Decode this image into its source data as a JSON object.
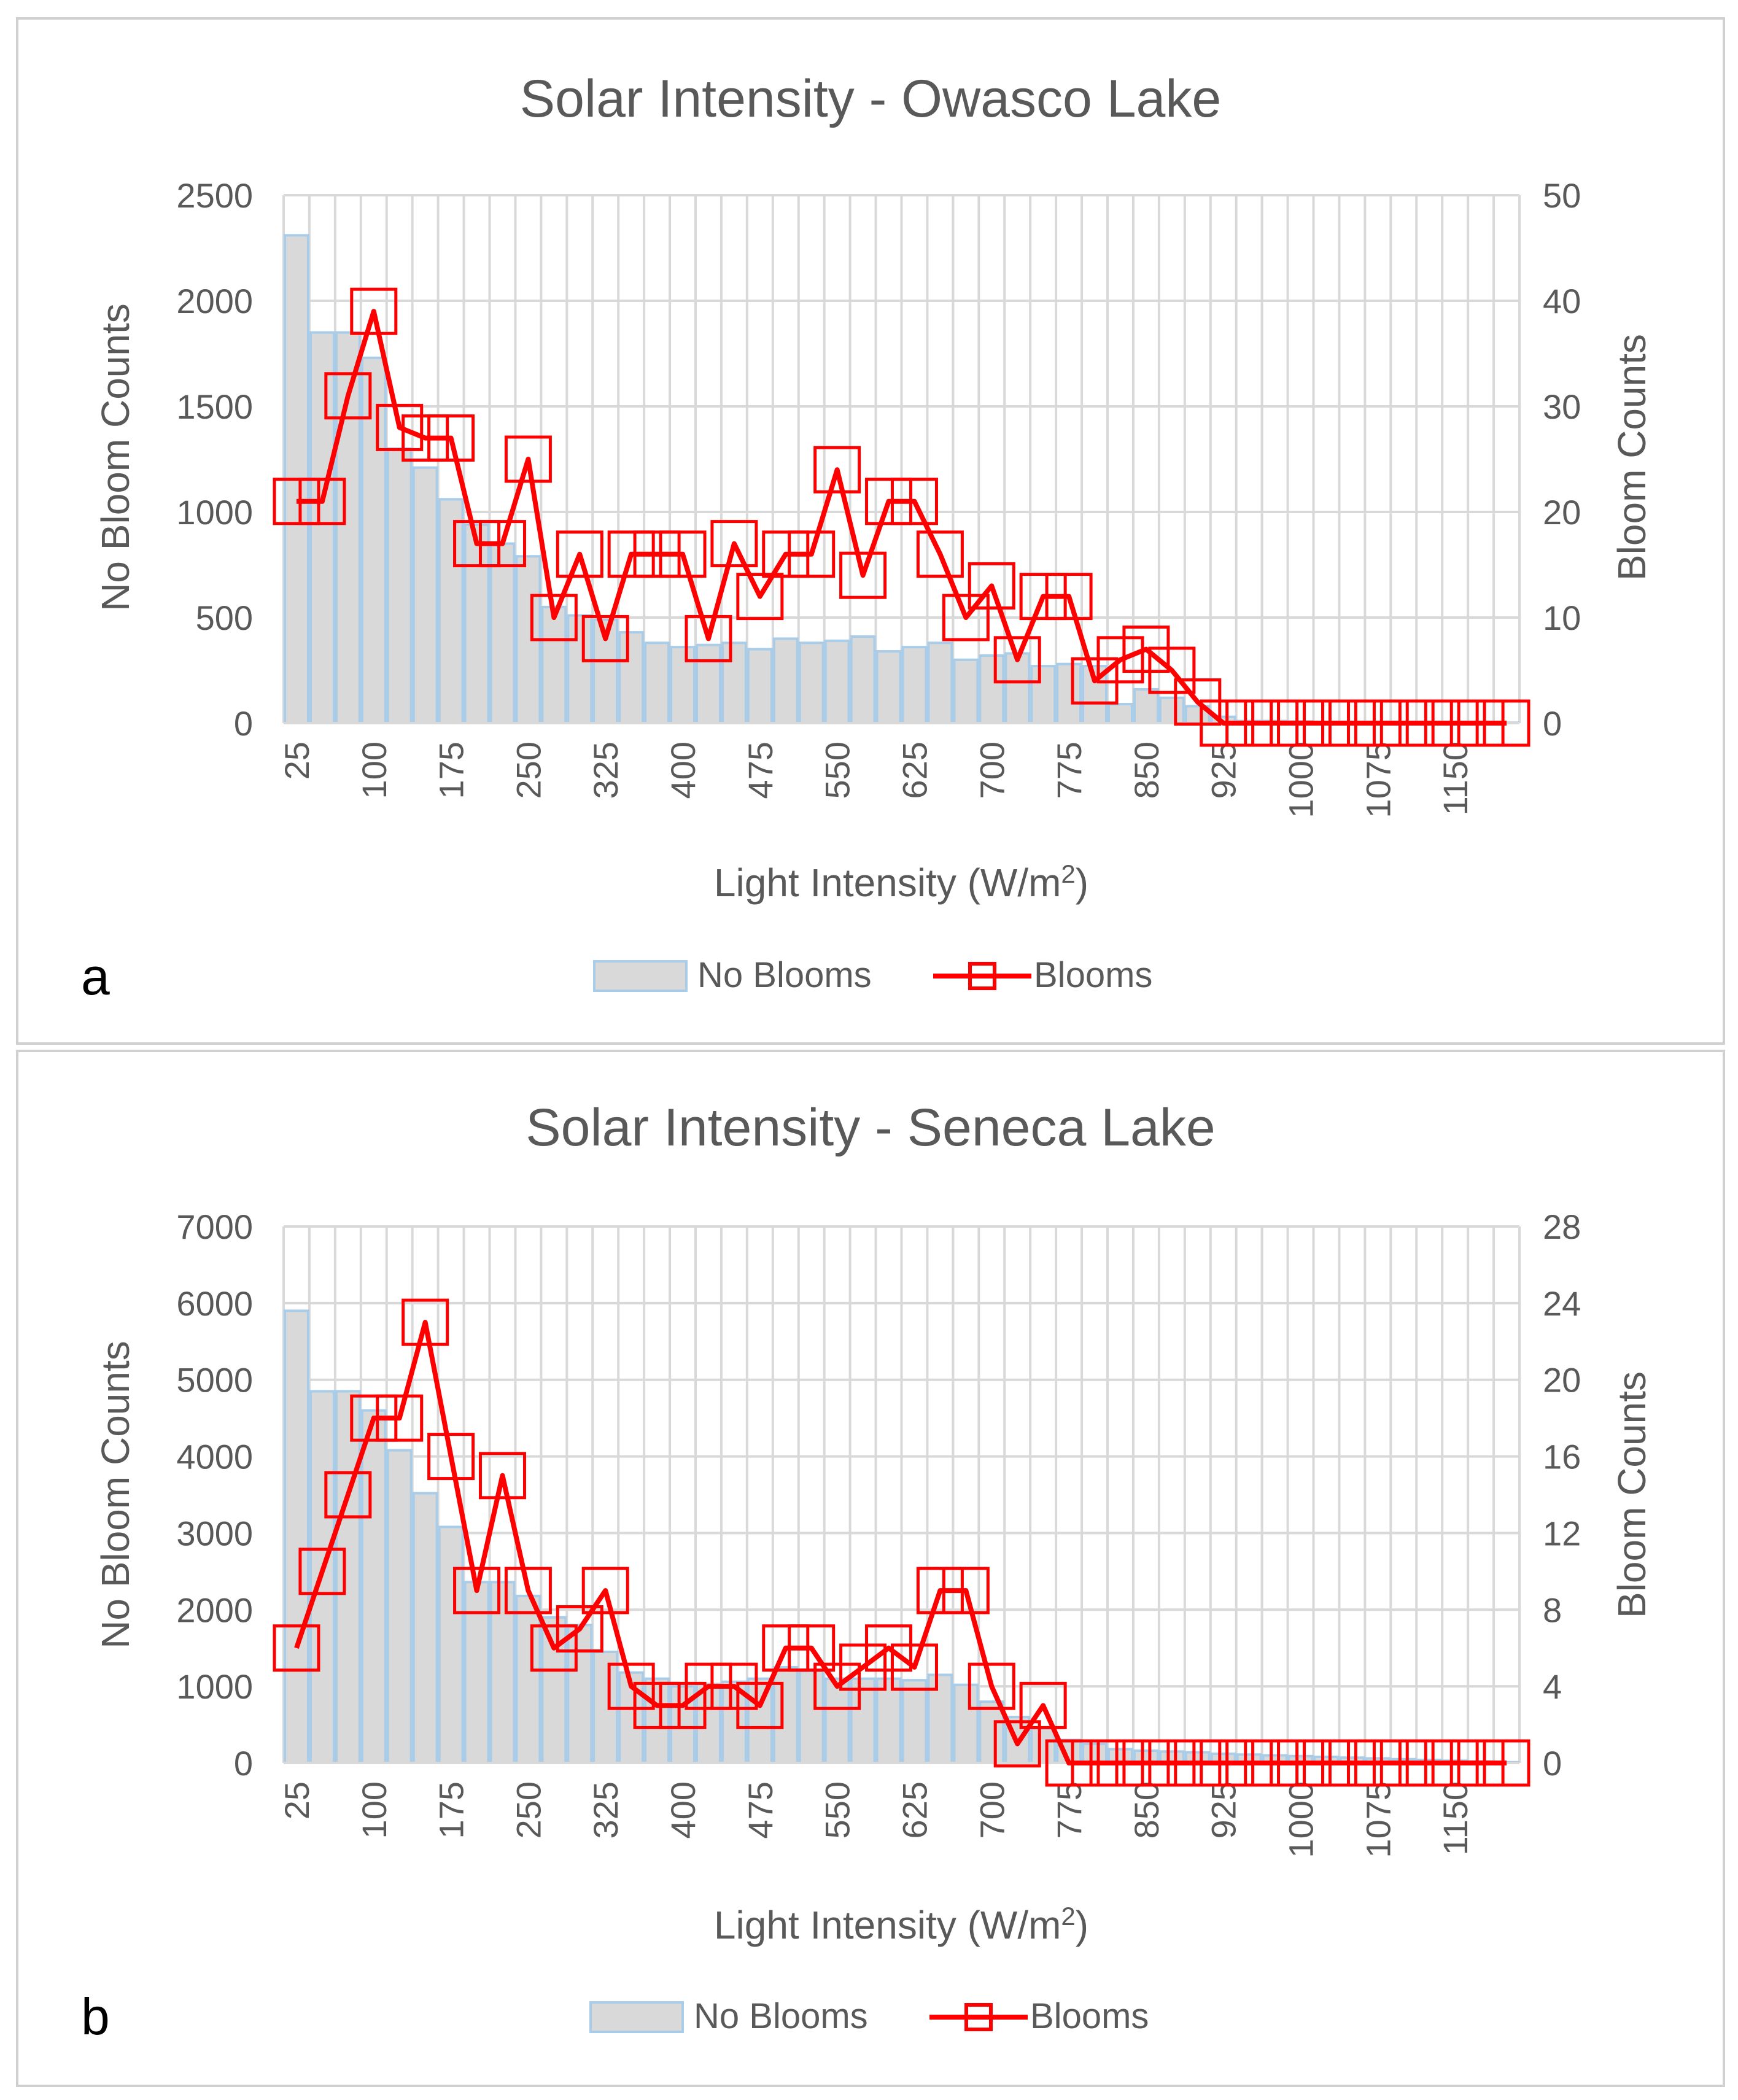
{
  "chart_data": [
    {
      "panel_label": "a",
      "type": "bar+line",
      "title": "Solar Intensity - Owasco Lake",
      "xlabel": "Light Intensity (W/m",
      "xlabel_sup": "2",
      "xlabel_end": ")",
      "ylabel_left": "No Bloom Counts",
      "ylabel_right": "Bloom Counts",
      "categories": [
        25,
        50,
        75,
        100,
        125,
        150,
        175,
        200,
        225,
        250,
        275,
        300,
        325,
        350,
        375,
        400,
        425,
        450,
        475,
        500,
        525,
        550,
        575,
        600,
        625,
        650,
        675,
        700,
        725,
        750,
        775,
        800,
        825,
        850,
        875,
        900,
        925,
        950,
        975,
        1000,
        1025,
        1050,
        1075,
        1100,
        1125,
        1150,
        1175,
        1200
      ],
      "x_tick_labels": [
        "25",
        "100",
        "175",
        "250",
        "325",
        "400",
        "475",
        "550",
        "625",
        "700",
        "775",
        "850",
        "925",
        "1000",
        "1075",
        "1150"
      ],
      "yleft_ticks": [
        "0",
        "500",
        "1000",
        "1500",
        "2000",
        "2500"
      ],
      "yleft_range": [
        0,
        2500
      ],
      "yright_ticks": [
        "0",
        "10",
        "20",
        "30",
        "40",
        "50"
      ],
      "yright_range": [
        0,
        50
      ],
      "series": [
        {
          "name": "No Blooms",
          "kind": "bar",
          "axis": "left",
          "color": "#d9d9d9",
          "edge": "#a9cce8",
          "values": [
            2310,
            1850,
            1850,
            1730,
            1300,
            1210,
            1060,
            940,
            850,
            790,
            550,
            510,
            490,
            430,
            380,
            360,
            370,
            380,
            350,
            400,
            380,
            390,
            410,
            340,
            360,
            380,
            300,
            320,
            330,
            270,
            280,
            270,
            90,
            160,
            120,
            80,
            30,
            10,
            10,
            8,
            5,
            5,
            4,
            3,
            3,
            2,
            2,
            2
          ]
        },
        {
          "name": "Blooms",
          "kind": "line",
          "axis": "right",
          "color": "#ff0000",
          "values": [
            21,
            21,
            31,
            39,
            28,
            27,
            27,
            17,
            17,
            25,
            10,
            16,
            8,
            16,
            16,
            16,
            8,
            17,
            12,
            16,
            16,
            24,
            14,
            21,
            21,
            16,
            10,
            13,
            6,
            12,
            12,
            4,
            6,
            7,
            5,
            2,
            0,
            0,
            0,
            0,
            0,
            0,
            0,
            0,
            0,
            0,
            0,
            0
          ]
        }
      ],
      "legend": [
        "No Blooms",
        "Blooms"
      ],
      "legend_position": "bottom"
    },
    {
      "panel_label": "b",
      "type": "bar+line",
      "title": "Solar Intensity - Seneca Lake",
      "xlabel": "Light Intensity (W/m",
      "xlabel_sup": "2",
      "xlabel_end": ")",
      "ylabel_left": "No Bloom Counts",
      "ylabel_right": "Bloom Counts",
      "categories": [
        25,
        50,
        75,
        100,
        125,
        150,
        175,
        200,
        225,
        250,
        275,
        300,
        325,
        350,
        375,
        400,
        425,
        450,
        475,
        500,
        525,
        550,
        575,
        600,
        625,
        650,
        675,
        700,
        725,
        750,
        775,
        800,
        825,
        850,
        875,
        900,
        925,
        950,
        975,
        1000,
        1025,
        1050,
        1075,
        1100,
        1125,
        1150,
        1175,
        1200
      ],
      "x_tick_labels": [
        "25",
        "100",
        "175",
        "250",
        "325",
        "400",
        "475",
        "550",
        "625",
        "700",
        "775",
        "850",
        "925",
        "1000",
        "1075",
        "1150"
      ],
      "yleft_ticks": [
        "0",
        "1000",
        "2000",
        "3000",
        "4000",
        "5000",
        "6000",
        "7000"
      ],
      "yleft_range": [
        0,
        7000
      ],
      "yright_ticks": [
        "0",
        "4",
        "8",
        "12",
        "16",
        "20",
        "24",
        "28"
      ],
      "yright_range": [
        0,
        28
      ],
      "series": [
        {
          "name": "No Blooms",
          "kind": "bar",
          "axis": "left",
          "color": "#d9d9d9",
          "edge": "#a9cce8",
          "values": [
            5900,
            4850,
            4850,
            4600,
            4080,
            3520,
            3080,
            2360,
            2360,
            2180,
            1900,
            1800,
            1450,
            1180,
            1100,
            1000,
            1030,
            1060,
            1100,
            1250,
            1200,
            1100,
            1100,
            1100,
            1080,
            1150,
            1020,
            800,
            600,
            450,
            300,
            250,
            180,
            160,
            150,
            140,
            120,
            110,
            100,
            90,
            80,
            70,
            60,
            50,
            40,
            30,
            20,
            10
          ]
        },
        {
          "name": "Blooms",
          "kind": "line",
          "axis": "right",
          "color": "#ff0000",
          "values": [
            6,
            10,
            14,
            18,
            18,
            23,
            16,
            9,
            15,
            9,
            6,
            7,
            9,
            4,
            3,
            3,
            4,
            4,
            3,
            6,
            6,
            4,
            5,
            6,
            5,
            9,
            9,
            4,
            1,
            3,
            0,
            0,
            0,
            0,
            0,
            0,
            0,
            0,
            0,
            0,
            0,
            0,
            0,
            0,
            0,
            0,
            0,
            0
          ]
        }
      ],
      "legend": [
        "No Blooms",
        "Blooms"
      ],
      "legend_position": "bottom"
    }
  ]
}
